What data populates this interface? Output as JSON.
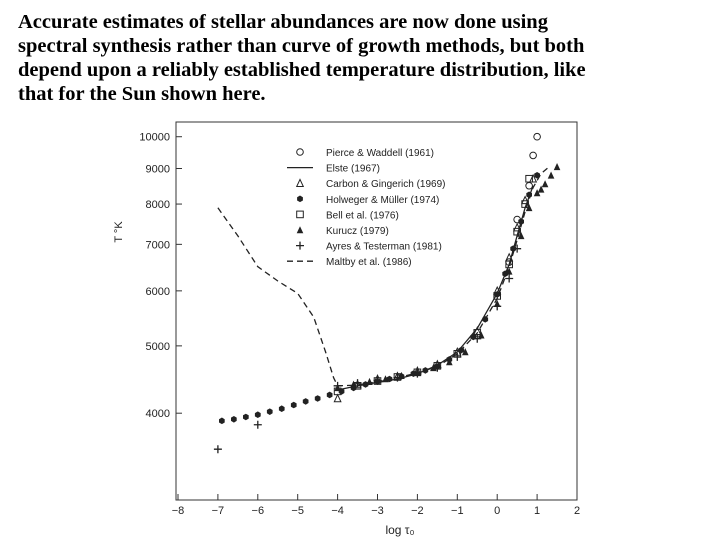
{
  "caption": {
    "lines": [
      "Accurate estimates of stellar abundances are now done using",
      "spectral synthesis rather than curve of growth methods, but both",
      "depend upon a reliably established temperature distribution, like",
      "that for the Sun shown here."
    ]
  },
  "chart_data": {
    "type": "scatter",
    "title": "",
    "xlabel": "log τ₀",
    "ylabel": "T °K",
    "xlim": [
      -8,
      2
    ],
    "ylim": [
      3000,
      10500
    ],
    "y_scale": "log",
    "xticks": [
      "−8",
      "−7",
      "−6",
      "−5",
      "−4",
      "−3",
      "−2",
      "−1",
      "0",
      "1",
      "2"
    ],
    "yticks": [
      "4000",
      "5000",
      "6000",
      "7000",
      "8000",
      "9000",
      "10000"
    ],
    "legend_position": "top-right",
    "grid": false,
    "series": [
      {
        "name": "Pierce & Waddell (1961)",
        "marker": "circle-open",
        "points": [
          [
            0.3,
            6600
          ],
          [
            0.5,
            7600
          ],
          [
            0.8,
            8500
          ],
          [
            0.9,
            9400
          ],
          [
            1.0,
            10000
          ]
        ]
      },
      {
        "name": "Elste (1967)",
        "marker": "line-solid",
        "points": [
          [
            -4,
            4320
          ],
          [
            -3.5,
            4380
          ],
          [
            -3,
            4430
          ],
          [
            -2.5,
            4480
          ],
          [
            -2,
            4560
          ],
          [
            -1.5,
            4690
          ],
          [
            -1,
            4900
          ],
          [
            -0.5,
            5300
          ],
          [
            0,
            5950
          ],
          [
            0.3,
            6550
          ],
          [
            0.5,
            7200
          ],
          [
            0.7,
            7900
          ],
          [
            0.9,
            8500
          ]
        ]
      },
      {
        "name": "Carbon & Gingerich (1969)",
        "marker": "triangle-open",
        "points": [
          [
            -4,
            4200
          ],
          [
            -3.5,
            4400
          ],
          [
            -3,
            4480
          ],
          [
            -2.5,
            4520
          ],
          [
            -2,
            4600
          ],
          [
            -1.5,
            4700
          ],
          [
            -1,
            4900
          ],
          [
            -0.5,
            5250
          ],
          [
            0,
            6000
          ],
          [
            0.3,
            6700
          ],
          [
            0.5,
            7400
          ],
          [
            0.7,
            8100
          ],
          [
            0.9,
            8700
          ]
        ]
      },
      {
        "name": "Holweger & Müller (1974)",
        "marker": "hexagon-filled",
        "points": [
          [
            -6.9,
            3900
          ],
          [
            -6.6,
            3920
          ],
          [
            -6.3,
            3950
          ],
          [
            -6,
            3980
          ],
          [
            -5.7,
            4020
          ],
          [
            -5.4,
            4060
          ],
          [
            -5.1,
            4110
          ],
          [
            -4.8,
            4160
          ],
          [
            -4.5,
            4200
          ],
          [
            -4.2,
            4250
          ],
          [
            -3.9,
            4300
          ],
          [
            -3.6,
            4350
          ],
          [
            -3.3,
            4400
          ],
          [
            -3,
            4440
          ],
          [
            -2.7,
            4480
          ],
          [
            -2.4,
            4520
          ],
          [
            -2.1,
            4560
          ],
          [
            -1.8,
            4610
          ],
          [
            -1.5,
            4670
          ],
          [
            -1.2,
            4780
          ],
          [
            -0.9,
            4930
          ],
          [
            -0.6,
            5150
          ],
          [
            -0.3,
            5460
          ],
          [
            0,
            5930
          ],
          [
            0.2,
            6350
          ],
          [
            0.4,
            6900
          ],
          [
            0.6,
            7550
          ],
          [
            0.8,
            8250
          ],
          [
            1.0,
            8800
          ]
        ]
      },
      {
        "name": "Bell et al. (1976)",
        "marker": "square-open",
        "points": [
          [
            -4,
            4300
          ],
          [
            -3.5,
            4380
          ],
          [
            -3,
            4450
          ],
          [
            -2.5,
            4510
          ],
          [
            -2,
            4580
          ],
          [
            -1.5,
            4680
          ],
          [
            -1,
            4870
          ],
          [
            -0.5,
            5220
          ],
          [
            0,
            5900
          ],
          [
            0.3,
            6550
          ],
          [
            0.5,
            7300
          ],
          [
            0.7,
            8000
          ],
          [
            0.8,
            8700
          ]
        ]
      },
      {
        "name": "Kurucz (1979)",
        "marker": "triangle-filled",
        "points": [
          [
            -4,
            4350
          ],
          [
            -3.6,
            4400
          ],
          [
            -3.2,
            4440
          ],
          [
            -2.8,
            4480
          ],
          [
            -2.4,
            4530
          ],
          [
            -2,
            4580
          ],
          [
            -1.6,
            4650
          ],
          [
            -1.2,
            4740
          ],
          [
            -0.8,
            4900
          ],
          [
            -0.4,
            5180
          ],
          [
            0,
            5750
          ],
          [
            0.3,
            6400
          ],
          [
            0.6,
            7200
          ],
          [
            0.8,
            7900
          ],
          [
            1.0,
            8300
          ],
          [
            1.1,
            8400
          ],
          [
            1.2,
            8550
          ],
          [
            1.35,
            8800
          ],
          [
            1.5,
            9050
          ]
        ]
      },
      {
        "name": "Ayres & Testerman (1981)",
        "marker": "plus",
        "points": [
          [
            -7,
            3550
          ],
          [
            -6,
            3850
          ],
          [
            -4,
            4380
          ],
          [
            -3.5,
            4420
          ],
          [
            -3,
            4460
          ],
          [
            -2.5,
            4500
          ],
          [
            -2,
            4560
          ],
          [
            -1.5,
            4650
          ],
          [
            -1,
            4820
          ],
          [
            -0.5,
            5120
          ],
          [
            0,
            5700
          ],
          [
            0.3,
            6250
          ],
          [
            0.5,
            6900
          ]
        ]
      },
      {
        "name": "Maltby et al. (1986)",
        "marker": "line-dashed",
        "points": [
          [
            -7,
            7900
          ],
          [
            -6.5,
            7200
          ],
          [
            -6,
            6500
          ],
          [
            -5.5,
            6200
          ],
          [
            -5,
            5950
          ],
          [
            -4.6,
            5500
          ],
          [
            -4.3,
            4900
          ],
          [
            -4.1,
            4500
          ],
          [
            -4,
            4380
          ],
          [
            -3.5,
            4390
          ],
          [
            -3,
            4440
          ],
          [
            -2.5,
            4500
          ],
          [
            -2,
            4570
          ],
          [
            -1.5,
            4670
          ],
          [
            -1,
            4870
          ],
          [
            -0.5,
            5220
          ],
          [
            0,
            5850
          ],
          [
            0.3,
            6500
          ],
          [
            0.5,
            7100
          ],
          [
            0.7,
            7800
          ],
          [
            0.9,
            8450
          ],
          [
            1.1,
            8850
          ],
          [
            1.3,
            9050
          ]
        ]
      }
    ]
  }
}
